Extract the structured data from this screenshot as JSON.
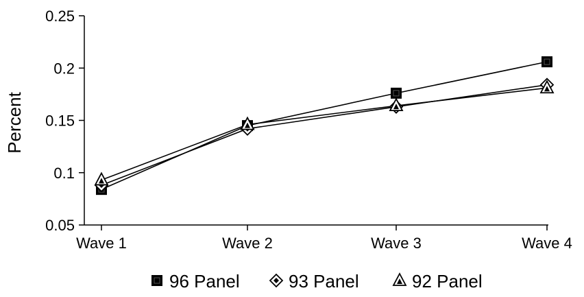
{
  "chart_data": {
    "type": "line",
    "title": "",
    "xlabel": "",
    "ylabel": "Percent",
    "categories": [
      "Wave 1",
      "Wave 2",
      "Wave 3",
      "Wave 4"
    ],
    "ylim": [
      0.05,
      0.25
    ],
    "yticks": [
      0.05,
      0.1,
      0.15,
      0.2,
      0.25
    ],
    "ytick_labels": [
      "0.05",
      "0.1",
      "0.15",
      "0.2",
      "0.25"
    ],
    "grid": false,
    "legend_position": "bottom",
    "series": [
      {
        "name": "96 Panel",
        "marker": "square",
        "values": [
          0.084,
          0.145,
          0.176,
          0.206
        ]
      },
      {
        "name": "93 Panel",
        "marker": "diamond",
        "values": [
          0.088,
          0.142,
          0.163,
          0.184
        ]
      },
      {
        "name": "92 Panel",
        "marker": "triangle",
        "values": [
          0.093,
          0.146,
          0.164,
          0.181
        ]
      }
    ],
    "colors": {
      "line": "#000000",
      "marker": "#000000"
    }
  }
}
